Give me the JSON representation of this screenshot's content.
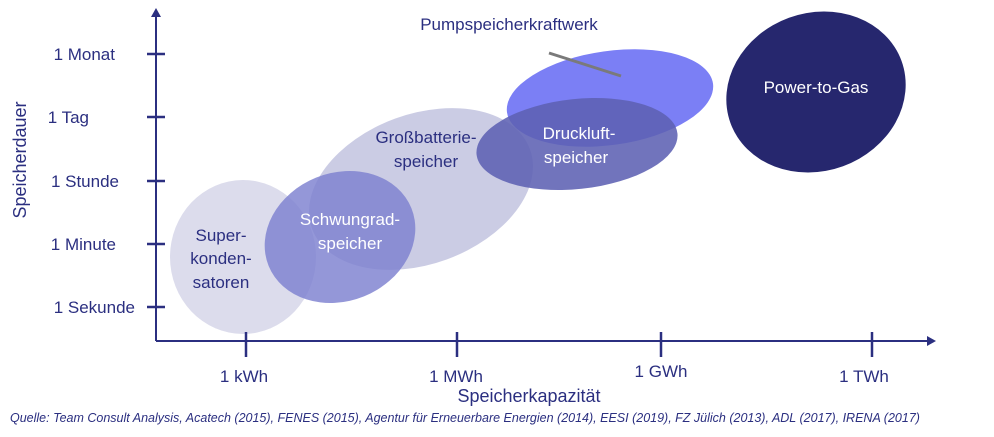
{
  "chart_data": {
    "type": "bubble-region",
    "xlabel": "Speicherkapazität",
    "ylabel": "Speicherdauer",
    "x_ticks": [
      "1 kWh",
      "1 MWh",
      "1 GWh",
      "1 TWh"
    ],
    "y_ticks": [
      "1 Sekunde",
      "1 Minute",
      "1 Stunde",
      "1 Tag",
      "1 Monat"
    ],
    "x_scale": "log",
    "y_scale": "log",
    "colors": {
      "axis": "#2b2f80",
      "superkondensatoren": "#dcdcec",
      "grossbatterie": "#c4c5e0",
      "schwungrad": "#7c80d0",
      "druckluft": "#6266b8",
      "pumpspeicher": "#7b7ff5",
      "power_to_gas": "#26276e"
    },
    "regions": [
      {
        "id": "superkondensatoren",
        "label_lines": [
          "Super-",
          "konden-",
          "satoren"
        ],
        "x_range_index": [
          -0.35,
          0.25
        ],
        "y_range_index": [
          -0.45,
          1.35
        ]
      },
      {
        "id": "grossbatterie",
        "label_lines": [
          "Großbatterie-",
          "speicher"
        ],
        "x_range_index": [
          0.2,
          1.35
        ],
        "y_range_index": [
          0.35,
          3.1
        ]
      },
      {
        "id": "schwungrad",
        "label_lines": [
          "Schwungrad-",
          "speicher"
        ],
        "x_range_index": [
          0.1,
          0.85
        ],
        "y_range_index": [
          -0.05,
          2.15
        ]
      },
      {
        "id": "pumpspeicher",
        "label_lines": [
          "Pumpspeicherkraftwerk"
        ],
        "x_range_index": [
          1.25,
          2.25
        ],
        "y_range_index": [
          2.85,
          4.6
        ]
      },
      {
        "id": "druckluft",
        "label_lines": [
          "Druckluft-",
          "speicher"
        ],
        "x_range_index": [
          1.1,
          2.1
        ],
        "y_range_index": [
          2.3,
          3.7
        ]
      },
      {
        "id": "power_to_gas",
        "label_lines": [
          "Power-to-Gas"
        ],
        "x_range_index": [
          2.3,
          3.2
        ],
        "y_range_index": [
          2.6,
          5.2
        ]
      }
    ],
    "source": "Quelle: Team Consult Analysis, Acatech (2015), FENES (2015), Agentur für Erneuerbare Energien (2014), EESI (2019), FZ Jülich (2013), ADL (2017), IRENA (2017)"
  }
}
